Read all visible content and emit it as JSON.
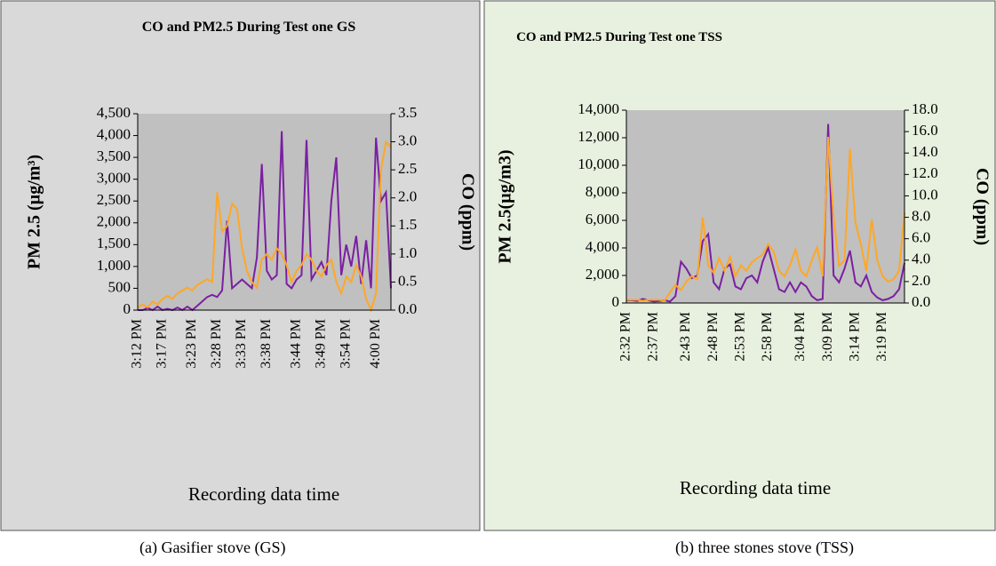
{
  "chart_data": [
    {
      "type": "line",
      "title": "CO and PM2.5 During Test one GS",
      "caption": "(a) Gasifier stove (GS)",
      "ylabel": "PM 2.5 (µg/m³)",
      "y2label": "CO (ppm)",
      "xlabel": "Recording data time",
      "categories": [
        "3:12 PM",
        null,
        null,
        null,
        null,
        "3:17 PM",
        null,
        null,
        null,
        null,
        null,
        "3:23 PM",
        null,
        null,
        null,
        null,
        "3:28 PM",
        null,
        null,
        null,
        null,
        "3:33 PM",
        null,
        null,
        null,
        null,
        "3:38 PM",
        null,
        null,
        null,
        null,
        null,
        "3:44 PM",
        null,
        null,
        null,
        null,
        "3:49 PM",
        null,
        null,
        null,
        null,
        "3:54 PM",
        null,
        null,
        null,
        null,
        null,
        "4:00 PM",
        null,
        null,
        null
      ],
      "ylim": [
        0,
        4500
      ],
      "yticks": [
        0,
        500,
        {
          "value": 1000,
          "label": "1,000"
        },
        {
          "value": 1500,
          "label": "1,500"
        },
        {
          "value": 2000,
          "label": "2,000"
        },
        {
          "value": 2500,
          "label": "2,500"
        },
        {
          "value": 3000,
          "label": "3,000"
        },
        {
          "value": 3500,
          "label": "3,500"
        },
        {
          "value": 4000,
          "label": "4,000"
        },
        {
          "value": 4500,
          "label": "4,500"
        }
      ],
      "y2lim": [
        0,
        3.5
      ],
      "y2ticks": [
        {
          "value": 0,
          "label": "0.0"
        },
        {
          "value": 0.5,
          "label": "0.5"
        },
        {
          "value": 1,
          "label": "1.0"
        },
        {
          "value": 1.5,
          "label": "1.5"
        },
        {
          "value": 2,
          "label": "2.0"
        },
        {
          "value": 2.5,
          "label": "2.5"
        },
        {
          "value": 3,
          "label": "3.0"
        },
        {
          "value": 3.5,
          "label": "3.5"
        }
      ],
      "series": [
        {
          "color": "#7b1fa2",
          "values": [
            0,
            0,
            50,
            0,
            80,
            0,
            30,
            0,
            60,
            0,
            80,
            0,
            100,
            200,
            300,
            350,
            300,
            450,
            2050,
            500,
            600,
            700,
            600,
            500,
            1200,
            3350,
            900,
            700,
            800,
            4100,
            600,
            500,
            700,
            800,
            3900,
            700,
            900,
            1100,
            800,
            2500,
            3500,
            800,
            1500,
            1000,
            1700,
            600,
            1600,
            500,
            3950,
            2500,
            2700,
            500
          ]
        },
        {
          "color": "#ffa726",
          "axis": "y2",
          "values": [
            0.05,
            0.1,
            0.05,
            0.15,
            0.1,
            0.2,
            0.25,
            0.2,
            0.3,
            0.35,
            0.4,
            0.35,
            0.45,
            0.5,
            0.55,
            0.5,
            2.1,
            1.4,
            1.5,
            1.9,
            1.8,
            1.1,
            0.7,
            0.5,
            0.4,
            0.9,
            1.0,
            0.9,
            1.1,
            1.0,
            0.8,
            0.5,
            0.7,
            0.8,
            1.0,
            0.9,
            0.7,
            0.6,
            0.8,
            0.9,
            0.5,
            0.3,
            0.6,
            0.5,
            0.8,
            0.6,
            0.2,
            0.0,
            0.3,
            2.5,
            3.0,
            2.9
          ]
        }
      ]
    },
    {
      "type": "line",
      "title": "CO and PM2.5 During Test one TSS",
      "caption": "(b) three stones stove (TSS)",
      "ylabel": "PM 2.5(µg/m3)",
      "y2label": "CO (ppm)",
      "xlabel": "Recording data time",
      "categories": [
        "2:32 PM",
        null,
        null,
        null,
        null,
        "2:37 PM",
        null,
        null,
        null,
        null,
        null,
        "2:43 PM",
        null,
        null,
        null,
        null,
        "2:48 PM",
        null,
        null,
        null,
        null,
        "2:53 PM",
        null,
        null,
        null,
        null,
        "2:58 PM",
        null,
        null,
        null,
        null,
        null,
        "3:04 PM",
        null,
        null,
        null,
        null,
        "3:09 PM",
        null,
        null,
        null,
        null,
        "3:14 PM",
        null,
        null,
        null,
        null,
        "3:19 PM",
        null,
        null,
        null,
        null
      ],
      "ylim": [
        0,
        14000
      ],
      "yticks": [
        0,
        {
          "value": 2000,
          "label": "2,000"
        },
        {
          "value": 4000,
          "label": "4,000"
        },
        {
          "value": 6000,
          "label": "6,000"
        },
        {
          "value": 8000,
          "label": "8,000"
        },
        {
          "value": 10000,
          "label": "10,000"
        },
        {
          "value": 12000,
          "label": "12,000"
        },
        {
          "value": 14000,
          "label": "14,000"
        }
      ],
      "y2lim": [
        0,
        18
      ],
      "y2ticks": [
        {
          "value": 0,
          "label": "0.0"
        },
        {
          "value": 2,
          "label": "2.0"
        },
        {
          "value": 4,
          "label": "4.0"
        },
        {
          "value": 6,
          "label": "6.0"
        },
        {
          "value": 8,
          "label": "8.0"
        },
        {
          "value": 10,
          "label": "10.0"
        },
        {
          "value": 12,
          "label": "12.0"
        },
        {
          "value": 14,
          "label": "14.0"
        },
        {
          "value": 16,
          "label": "16.0"
        },
        {
          "value": 18,
          "label": "18.0"
        }
      ],
      "series": [
        {
          "color": "#7b1fa2",
          "values": [
            200,
            200,
            150,
            300,
            200,
            100,
            150,
            200,
            100,
            500,
            3000,
            2500,
            1800,
            2000,
            4500,
            5000,
            1500,
            1000,
            2500,
            2800,
            1200,
            1000,
            1800,
            2000,
            1500,
            3000,
            4000,
            2500,
            1000,
            800,
            1500,
            800,
            1500,
            1200,
            500,
            200,
            300,
            13000,
            2000,
            1500,
            2500,
            3800,
            1500,
            1200,
            2000,
            800,
            400,
            200,
            300,
            500,
            1000,
            2900
          ]
        },
        {
          "color": "#ffa726",
          "axis": "y2",
          "values": [
            0.3,
            0.3,
            0.3,
            0.2,
            0.3,
            0.3,
            0.3,
            0.2,
            1.0,
            1.7,
            1.2,
            2.0,
            2.5,
            2.2,
            8.0,
            3.5,
            2.8,
            4.2,
            3.0,
            4.3,
            2.5,
            3.5,
            3.0,
            3.8,
            4.2,
            4.5,
            5.5,
            4.8,
            3.0,
            2.5,
            3.5,
            5.0,
            3.0,
            2.5,
            4.0,
            5.2,
            2.5,
            15.5,
            8.0,
            3.5,
            4.0,
            14.4,
            7.5,
            5.5,
            3.0,
            7.8,
            4.0,
            2.5,
            2.0,
            2.2,
            3.0,
            8.4
          ]
        }
      ]
    }
  ]
}
